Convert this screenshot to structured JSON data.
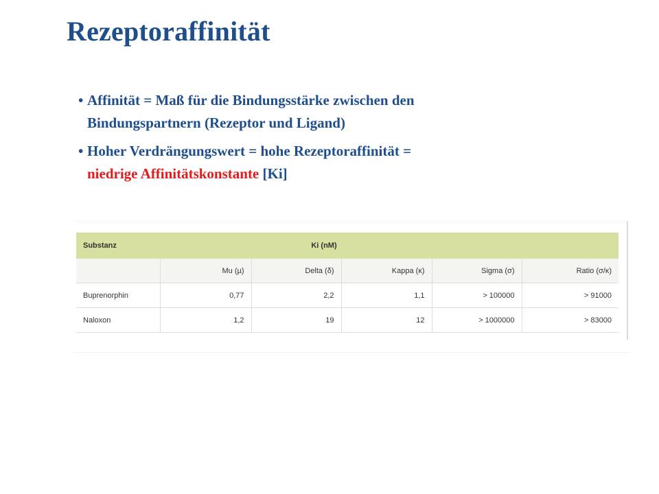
{
  "title": "Rezeptoraffinität",
  "bullets": {
    "b1": {
      "marker": "•",
      "text": "Affinität = Maß für die Bindungsstärke zwischen den Bindungspartnern (Rezeptor und Ligand)"
    },
    "b2": {
      "marker": "•",
      "text_a": "Hoher Verdrängungswert = hohe Rezeptoraffinität =",
      "text_red": "niedrige Affinitätskonstante",
      "text_b": " [Ki]"
    }
  },
  "colors": {
    "title": "#1f4e8c",
    "highlight": "#e01c1c",
    "table_header": "#d7e0a0"
  },
  "table": {
    "col_substance": "Substanz",
    "col_group": "Ki (nM)",
    "sub_headers": {
      "mu": "Mu (µ)",
      "delta": "Delta (δ)",
      "kappa": "Kappa (κ)",
      "sigma": "Sigma (σ)",
      "ratio": "Ratio (σ/κ)"
    },
    "rows": [
      {
        "name": "Buprenorphin",
        "mu": "0,77",
        "delta": "2,2",
        "kappa": "1,1",
        "sigma": "> 100000",
        "ratio": "> 91000"
      },
      {
        "name": "Naloxon",
        "mu": "1,2",
        "delta": "19",
        "kappa": "12",
        "sigma": "> 1000000",
        "ratio": ">  83000"
      }
    ]
  }
}
